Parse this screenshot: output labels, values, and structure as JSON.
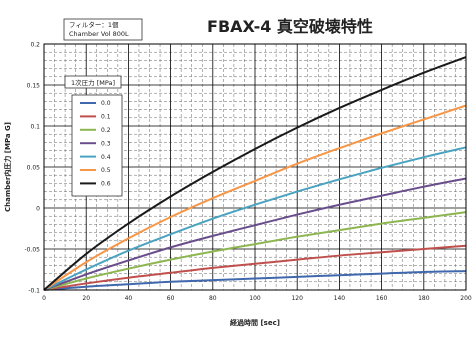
{
  "chart_data": {
    "type": "line",
    "title": "FBAX-4 真空破壊特性",
    "info_box": [
      "フィルター：1個",
      "Chamber Vol 800L"
    ],
    "xlabel": "経過時間 [sec]",
    "ylabel": "Chamber内圧力 [MPa G]",
    "xlim": [
      0,
      200
    ],
    "ylim": [
      -0.1,
      0.2
    ],
    "x_ticks": [
      0,
      20,
      40,
      60,
      80,
      100,
      120,
      140,
      160,
      180,
      200
    ],
    "y_ticks": [
      -0.1,
      -0.05,
      0,
      0.05,
      0.1,
      0.15,
      0.2
    ],
    "x_tick_labels": [
      "0",
      "20",
      "40",
      "60",
      "80",
      "100",
      "120",
      "140",
      "160",
      "180",
      "200"
    ],
    "y_tick_labels": [
      "-0.1",
      "-0.05",
      "0",
      "0.05",
      "0.1",
      "0.15",
      "0.2"
    ],
    "grid": true,
    "legend_title": "1次圧力 [MPa]",
    "legend_position": "left",
    "x": [
      0,
      20,
      40,
      60,
      80,
      100,
      120,
      140,
      160,
      180,
      200
    ],
    "series": [
      {
        "name": "0.0",
        "color": "#3f68ad",
        "values": [
          -0.1,
          -0.096,
          -0.093,
          -0.09,
          -0.088,
          -0.086,
          -0.084,
          -0.082,
          -0.08,
          -0.078,
          -0.077
        ]
      },
      {
        "name": "0.1",
        "color": "#c0504d",
        "values": [
          -0.1,
          -0.092,
          -0.085,
          -0.079,
          -0.073,
          -0.068,
          -0.063,
          -0.058,
          -0.054,
          -0.05,
          -0.046
        ]
      },
      {
        "name": "0.2",
        "color": "#8db650",
        "values": [
          -0.1,
          -0.086,
          -0.074,
          -0.063,
          -0.053,
          -0.044,
          -0.035,
          -0.027,
          -0.019,
          -0.012,
          -0.005
        ]
      },
      {
        "name": "0.3",
        "color": "#6a4e8c",
        "values": [
          -0.1,
          -0.081,
          -0.064,
          -0.048,
          -0.034,
          -0.021,
          -0.008,
          0.004,
          0.015,
          0.026,
          0.036
        ]
      },
      {
        "name": "0.4",
        "color": "#4aa3c0",
        "values": [
          -0.1,
          -0.075,
          -0.052,
          -0.032,
          -0.013,
          0.004,
          0.02,
          0.035,
          0.049,
          0.062,
          0.074
        ]
      },
      {
        "name": "0.5",
        "color": "#f79646",
        "values": [
          -0.1,
          -0.066,
          -0.037,
          -0.011,
          0.012,
          0.033,
          0.054,
          0.073,
          0.091,
          0.108,
          0.125
        ]
      },
      {
        "name": "0.6",
        "color": "#1a1a1a",
        "values": [
          -0.1,
          -0.056,
          -0.019,
          0.014,
          0.044,
          0.072,
          0.098,
          0.122,
          0.144,
          0.165,
          0.184
        ]
      }
    ]
  }
}
